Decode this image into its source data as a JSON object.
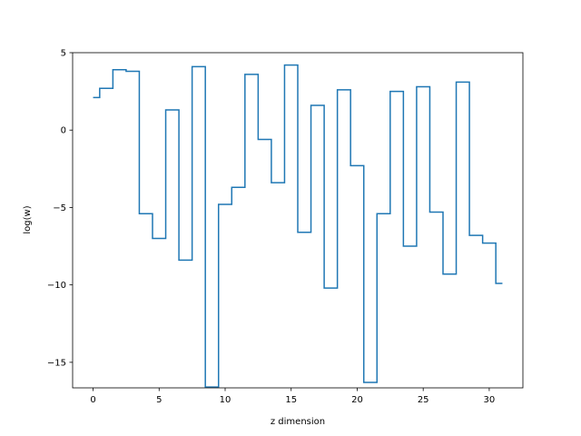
{
  "chart_data": {
    "type": "line",
    "drawstyle": "steps-mid",
    "title": "",
    "xlabel": "z dimension",
    "ylabel": "log(w)",
    "xlim": [
      -1.55,
      32.55
    ],
    "ylim": [
      -16.65,
      5.0
    ],
    "xticks": [
      0,
      5,
      10,
      15,
      20,
      25,
      30
    ],
    "yticks": [
      5,
      0,
      -5,
      -10,
      -15
    ],
    "xtick_labels": [
      "0",
      "5",
      "10",
      "15",
      "20",
      "25",
      "30"
    ],
    "ytick_labels": [
      "5",
      "0",
      "−5",
      "−10",
      "−15"
    ],
    "grid": false,
    "line_color": "#1f77b4",
    "series": [
      {
        "x": [
          0,
          1,
          2,
          3,
          4,
          5,
          6,
          7,
          8,
          9,
          10,
          11,
          12,
          13,
          14,
          15,
          16,
          17,
          18,
          19,
          20,
          21,
          22,
          23,
          24,
          25,
          26,
          27,
          28,
          29,
          30,
          31
        ],
        "values": [
          2.1,
          2.7,
          3.9,
          3.8,
          -5.4,
          -7.0,
          1.3,
          -8.4,
          4.1,
          -16.6,
          -4.8,
          -3.7,
          3.6,
          -0.6,
          -3.4,
          4.2,
          -6.6,
          1.6,
          -10.2,
          2.6,
          -2.3,
          -16.3,
          -5.4,
          2.5,
          -7.5,
          2.8,
          -5.3,
          -9.3,
          3.1,
          -6.8,
          -7.3,
          -9.9
        ]
      }
    ]
  }
}
